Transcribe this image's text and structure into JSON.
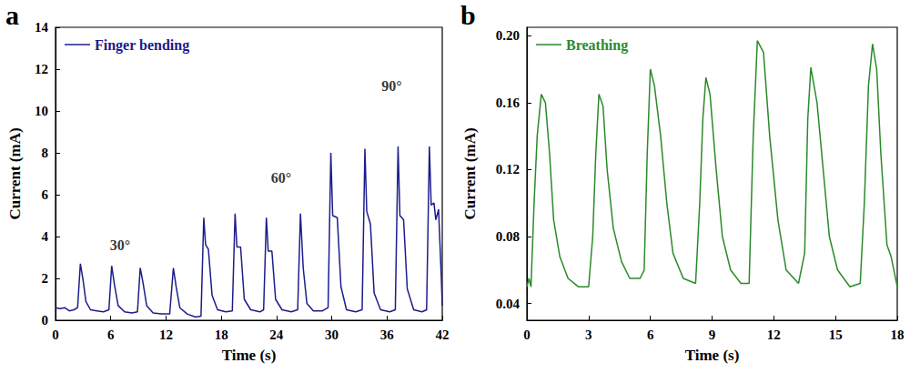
{
  "chart_data": [
    {
      "type": "line",
      "panel_label": "a",
      "x_label": "Time (s)",
      "y_label": "Current (mA)",
      "legend": "upper left",
      "grid": false,
      "xlim": [
        0,
        42
      ],
      "xticks": [
        0,
        6,
        12,
        18,
        24,
        30,
        36,
        42
      ],
      "ylim": [
        0,
        14
      ],
      "yticks": [
        0,
        2,
        4,
        6,
        8,
        10,
        12,
        14
      ],
      "x": [
        0,
        0.5,
        1,
        1.5,
        2,
        2.4,
        2.7,
        3.0,
        3.3,
        3.8,
        4.5,
        5.2,
        5.8,
        6.1,
        6.4,
        6.8,
        7.5,
        8.3,
        8.9,
        9.2,
        9.5,
        9.9,
        10.6,
        11.5,
        12.4,
        12.8,
        13.1,
        13.5,
        14.3,
        15.2,
        15.8,
        16.1,
        16.3,
        16.6,
        17,
        17.6,
        18.5,
        19.2,
        19.5,
        19.7,
        20.1,
        20.5,
        21.2,
        22.2,
        22.6,
        22.9,
        23.1,
        23.5,
        23.9,
        24.6,
        25.6,
        26.3,
        26.6,
        26.9,
        27.3,
        28,
        29,
        29.6,
        29.9,
        30.1,
        30.6,
        31,
        31.6,
        32.6,
        33.3,
        33.6,
        33.8,
        34.2,
        34.6,
        35.3,
        36.3,
        36.9,
        37.2,
        37.4,
        37.8,
        38.2,
        38.9,
        39.8,
        40.3,
        40.6,
        40.8,
        41.1,
        41.3,
        41.6,
        41.9,
        42
      ],
      "series": [
        {
          "name": "Finger bending",
          "color": "#1c1c8c",
          "values": [
            0.6,
            0.55,
            0.6,
            0.45,
            0.5,
            0.6,
            2.7,
            1.9,
            0.9,
            0.5,
            0.45,
            0.4,
            0.5,
            2.6,
            1.7,
            0.7,
            0.4,
            0.35,
            0.4,
            2.5,
            1.8,
            0.7,
            0.35,
            0.3,
            0.3,
            2.5,
            1.6,
            0.6,
            0.3,
            0.15,
            0.2,
            4.9,
            3.6,
            3.4,
            1.2,
            0.5,
            0.4,
            0.45,
            5.1,
            3.5,
            3.5,
            1.0,
            0.5,
            0.4,
            0.5,
            4.9,
            3.3,
            3.3,
            1.0,
            0.5,
            0.4,
            0.5,
            5.1,
            2.5,
            0.8,
            0.45,
            0.45,
            0.6,
            8.0,
            5.0,
            4.9,
            1.6,
            0.5,
            0.4,
            0.5,
            8.2,
            5.2,
            4.6,
            1.3,
            0.5,
            0.4,
            0.5,
            8.3,
            5.0,
            4.8,
            1.5,
            0.5,
            0.4,
            0.5,
            8.3,
            5.5,
            5.6,
            4.8,
            5.3,
            2.0,
            0.7
          ]
        }
      ],
      "annotations": [
        {
          "text": "30°",
          "x": 7,
          "y": 3.6
        },
        {
          "text": "60°",
          "x": 24.5,
          "y": 6.8
        },
        {
          "text": "90°",
          "x": 36.5,
          "y": 11.2
        }
      ]
    },
    {
      "type": "line",
      "panel_label": "b",
      "x_label": "Time (s)",
      "y_label": "Current (mA)",
      "legend": "upper left",
      "grid": false,
      "xlim": [
        0,
        18
      ],
      "xticks": [
        0,
        3,
        6,
        9,
        12,
        15,
        18
      ],
      "ylim": [
        0.03,
        0.205
      ],
      "yticks": [
        0.04,
        0.08,
        0.12,
        0.16,
        {
          "value": 0.2,
          "label": "0.20"
        }
      ],
      "x": [
        0,
        0.1,
        0.2,
        0.35,
        0.5,
        0.7,
        0.9,
        1.1,
        1.3,
        1.6,
        2,
        2.5,
        3,
        3.2,
        3.35,
        3.5,
        3.7,
        3.9,
        4.2,
        4.6,
        5,
        5.5,
        5.7,
        5.85,
        6.0,
        6.2,
        6.5,
        6.8,
        7.1,
        7.6,
        8.2,
        8.4,
        8.55,
        8.7,
        8.9,
        9.2,
        9.5,
        9.9,
        10.4,
        10.8,
        11.0,
        11.2,
        11.5,
        11.8,
        12.2,
        12.6,
        13.2,
        13.5,
        13.65,
        13.8,
        14.1,
        14.4,
        14.7,
        15.1,
        15.7,
        16.2,
        16.4,
        16.6,
        16.8,
        17.0,
        17.2,
        17.5,
        17.7,
        18
      ],
      "series": [
        {
          "name": "Breathing",
          "color": "#2a8a2a",
          "values": [
            0.05,
            0.055,
            0.05,
            0.1,
            0.14,
            0.165,
            0.16,
            0.13,
            0.09,
            0.068,
            0.055,
            0.05,
            0.05,
            0.08,
            0.13,
            0.165,
            0.158,
            0.12,
            0.085,
            0.065,
            0.055,
            0.055,
            0.06,
            0.13,
            0.18,
            0.17,
            0.14,
            0.1,
            0.07,
            0.055,
            0.052,
            0.1,
            0.15,
            0.175,
            0.165,
            0.12,
            0.08,
            0.06,
            0.052,
            0.052,
            0.14,
            0.197,
            0.19,
            0.14,
            0.09,
            0.06,
            0.052,
            0.07,
            0.15,
            0.181,
            0.16,
            0.12,
            0.08,
            0.06,
            0.05,
            0.052,
            0.1,
            0.17,
            0.195,
            0.18,
            0.13,
            0.075,
            0.068,
            0.05
          ]
        }
      ]
    }
  ]
}
